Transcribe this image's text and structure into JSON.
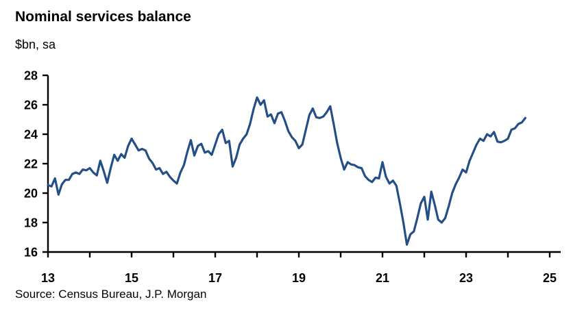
{
  "header": {
    "title": "Nominal services balance",
    "subtitle": "$bn, sa"
  },
  "footer": {
    "source": "Source: Census Bureau, J.P. Morgan"
  },
  "colors": {
    "line": "#244f86",
    "axis": "#000000",
    "text": "#000000",
    "background": "#ffffff"
  },
  "chart_data": {
    "type": "line",
    "title": "Nominal services balance",
    "ylabel": "$bn, sa",
    "xlabel": "",
    "source": "Source: Census Bureau, J.P. Morgan",
    "grid": false,
    "legend": "none",
    "frequency": "monthly",
    "x_start_label": "2013-01",
    "x_end_label": "2024-06",
    "x_axis": {
      "ticks": [
        13,
        14,
        15,
        16,
        17,
        18,
        19,
        20,
        21,
        22,
        23,
        24,
        25
      ],
      "labeled_ticks": [
        {
          "v": 13,
          "label": "13"
        },
        {
          "v": 15,
          "label": "15"
        },
        {
          "v": 17,
          "label": "17"
        },
        {
          "v": 19,
          "label": "19"
        },
        {
          "v": 21,
          "label": "21"
        },
        {
          "v": 23,
          "label": "23"
        },
        {
          "v": 25,
          "label": "25"
        }
      ],
      "range": [
        13,
        25.3
      ]
    },
    "y_axis": {
      "ticks": [
        16,
        18,
        20,
        22,
        24,
        26,
        28
      ],
      "range": [
        16,
        28
      ]
    },
    "series": [
      {
        "name": "Nominal services balance ($bn, sa)",
        "values": [
          20.55,
          20.45,
          21.0,
          19.9,
          20.6,
          20.9,
          20.9,
          21.3,
          21.4,
          21.3,
          21.6,
          21.55,
          21.7,
          21.4,
          21.2,
          22.2,
          21.5,
          20.7,
          21.7,
          22.6,
          22.2,
          22.65,
          22.4,
          23.2,
          23.7,
          23.3,
          22.9,
          23.0,
          22.9,
          22.35,
          22.05,
          21.6,
          21.7,
          21.3,
          21.45,
          21.1,
          20.85,
          20.65,
          21.4,
          21.9,
          22.8,
          23.6,
          22.55,
          23.2,
          23.35,
          22.75,
          22.85,
          22.6,
          23.3,
          24.0,
          24.3,
          23.4,
          23.55,
          21.8,
          22.4,
          23.3,
          23.7,
          24.0,
          24.7,
          25.7,
          26.5,
          26.0,
          26.3,
          25.2,
          25.35,
          24.75,
          25.4,
          25.5,
          24.9,
          24.2,
          23.8,
          23.55,
          23.05,
          23.3,
          24.3,
          25.3,
          25.75,
          25.15,
          25.1,
          25.2,
          25.5,
          25.9,
          24.7,
          23.4,
          22.4,
          21.6,
          22.1,
          21.95,
          21.9,
          21.75,
          21.7,
          21.15,
          20.9,
          20.75,
          21.05,
          21.0,
          22.1,
          21.1,
          20.65,
          20.85,
          20.5,
          19.3,
          18.0,
          16.5,
          17.2,
          17.4,
          18.3,
          19.3,
          19.75,
          18.2,
          20.1,
          19.2,
          18.2,
          18.0,
          18.3,
          19.1,
          20.0,
          20.6,
          21.05,
          21.6,
          21.4,
          22.2,
          22.75,
          23.3,
          23.7,
          23.55,
          24.0,
          23.85,
          24.15,
          23.5,
          23.45,
          23.55,
          23.7,
          24.3,
          24.4,
          24.7,
          24.8,
          25.1
        ]
      }
    ]
  }
}
